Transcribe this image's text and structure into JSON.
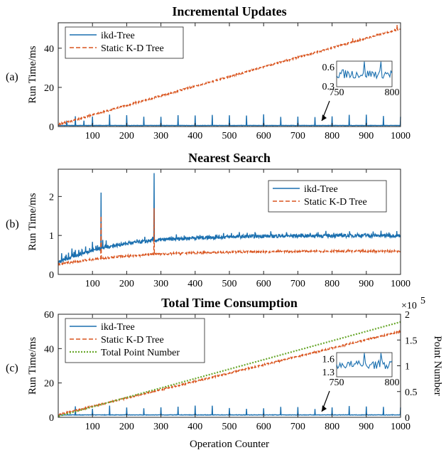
{
  "colors": {
    "ikd": "#1a6faf",
    "static": "#d9541e",
    "total": "#6aa82e",
    "axis": "#222222"
  },
  "chart_data": [
    {
      "type": "line",
      "panel_label": "(a)",
      "title": "Incremental Updates",
      "xlabel": "",
      "ylabel": "Run Time/ms",
      "xlim": [
        0,
        1000
      ],
      "ylim": [
        0,
        53
      ],
      "xticks": [
        100,
        200,
        300,
        400,
        500,
        600,
        700,
        800,
        900,
        1000
      ],
      "yticks": [
        0,
        20,
        40
      ],
      "legend": [
        "ikd-Tree",
        "Static K-D Tree"
      ],
      "legend_position": "top-left",
      "series": [
        {
          "name": "ikd-Tree",
          "style": "solid",
          "baseline": 0.55,
          "spike_every": 50,
          "spike_height": 5.5,
          "end_value": 0.6
        },
        {
          "name": "Static K-D Tree",
          "style": "dashed",
          "start": 1.0,
          "end": 50.0,
          "outliers": [
            {
              "x": 860,
              "y": 45.0
            },
            {
              "x": 990,
              "y": 52.0
            }
          ]
        }
      ],
      "inset": {
        "xlim": [
          750,
          800
        ],
        "ylim": [
          0.3,
          0.7
        ],
        "xticks": [
          750,
          800
        ],
        "yticks": [
          0.3,
          0.6
        ],
        "series": "ikd-Tree",
        "annotation": "arrow-to-x-775"
      }
    },
    {
      "type": "line",
      "panel_label": "(b)",
      "title": "Nearest Search",
      "xlabel": "",
      "ylabel": "Run Time/ms",
      "xlim": [
        0,
        1000
      ],
      "ylim": [
        0,
        2.7
      ],
      "xticks": [
        100,
        200,
        300,
        400,
        500,
        600,
        700,
        800,
        900,
        1000
      ],
      "yticks": [
        0,
        1,
        2
      ],
      "legend": [
        "ikd-Tree",
        "Static K-D Tree"
      ],
      "legend_position": "top-right",
      "series": [
        {
          "name": "ikd-Tree",
          "style": "solid",
          "start": 0.3,
          "plateau": 1.0,
          "spikes": [
            {
              "x": 125,
              "y": 2.1
            },
            {
              "x": 280,
              "y": 2.6
            }
          ]
        },
        {
          "name": "Static K-D Tree",
          "style": "dashed",
          "start": 0.25,
          "plateau": 0.6,
          "spikes": [
            {
              "x": 125,
              "y": 1.5
            },
            {
              "x": 280,
              "y": 1.7
            }
          ]
        }
      ]
    },
    {
      "type": "line",
      "panel_label": "(c)",
      "title": "Total Time Consumption",
      "xlabel": "Operation Counter",
      "ylabel": "Run Time/ms",
      "y2label": "Point Number",
      "y2_multiplier": "×10",
      "y2_exponent": "5",
      "xlim": [
        0,
        1000
      ],
      "ylim": [
        0,
        60
      ],
      "y2lim": [
        0,
        2.0
      ],
      "xticks": [
        100,
        200,
        300,
        400,
        500,
        600,
        700,
        800,
        900,
        1000
      ],
      "yticks": [
        0,
        20,
        40,
        60
      ],
      "y2ticks": [
        "0",
        "0.5",
        "1",
        "1.5",
        "2"
      ],
      "legend": [
        "ikd-Tree",
        "Static K-D Tree",
        "Total Point Number"
      ],
      "legend_position": "top-left",
      "series": [
        {
          "name": "ikd-Tree",
          "style": "solid",
          "baseline": 1.4,
          "spike_every": 50,
          "spike_height": 6.0
        },
        {
          "name": "Static K-D Tree",
          "style": "dashed",
          "start": 1.5,
          "end": 50.0
        },
        {
          "name": "Total Point Number",
          "style": "dotted",
          "axis": "right",
          "start": 0.02,
          "end": 1.85
        }
      ],
      "inset": {
        "xlim": [
          750,
          800
        ],
        "ylim": [
          1.2,
          1.75
        ],
        "xticks": [
          750,
          800
        ],
        "yticks": [
          1.3,
          1.6
        ],
        "series": "ikd-Tree",
        "annotation": "arrow-to-x-775"
      }
    }
  ]
}
